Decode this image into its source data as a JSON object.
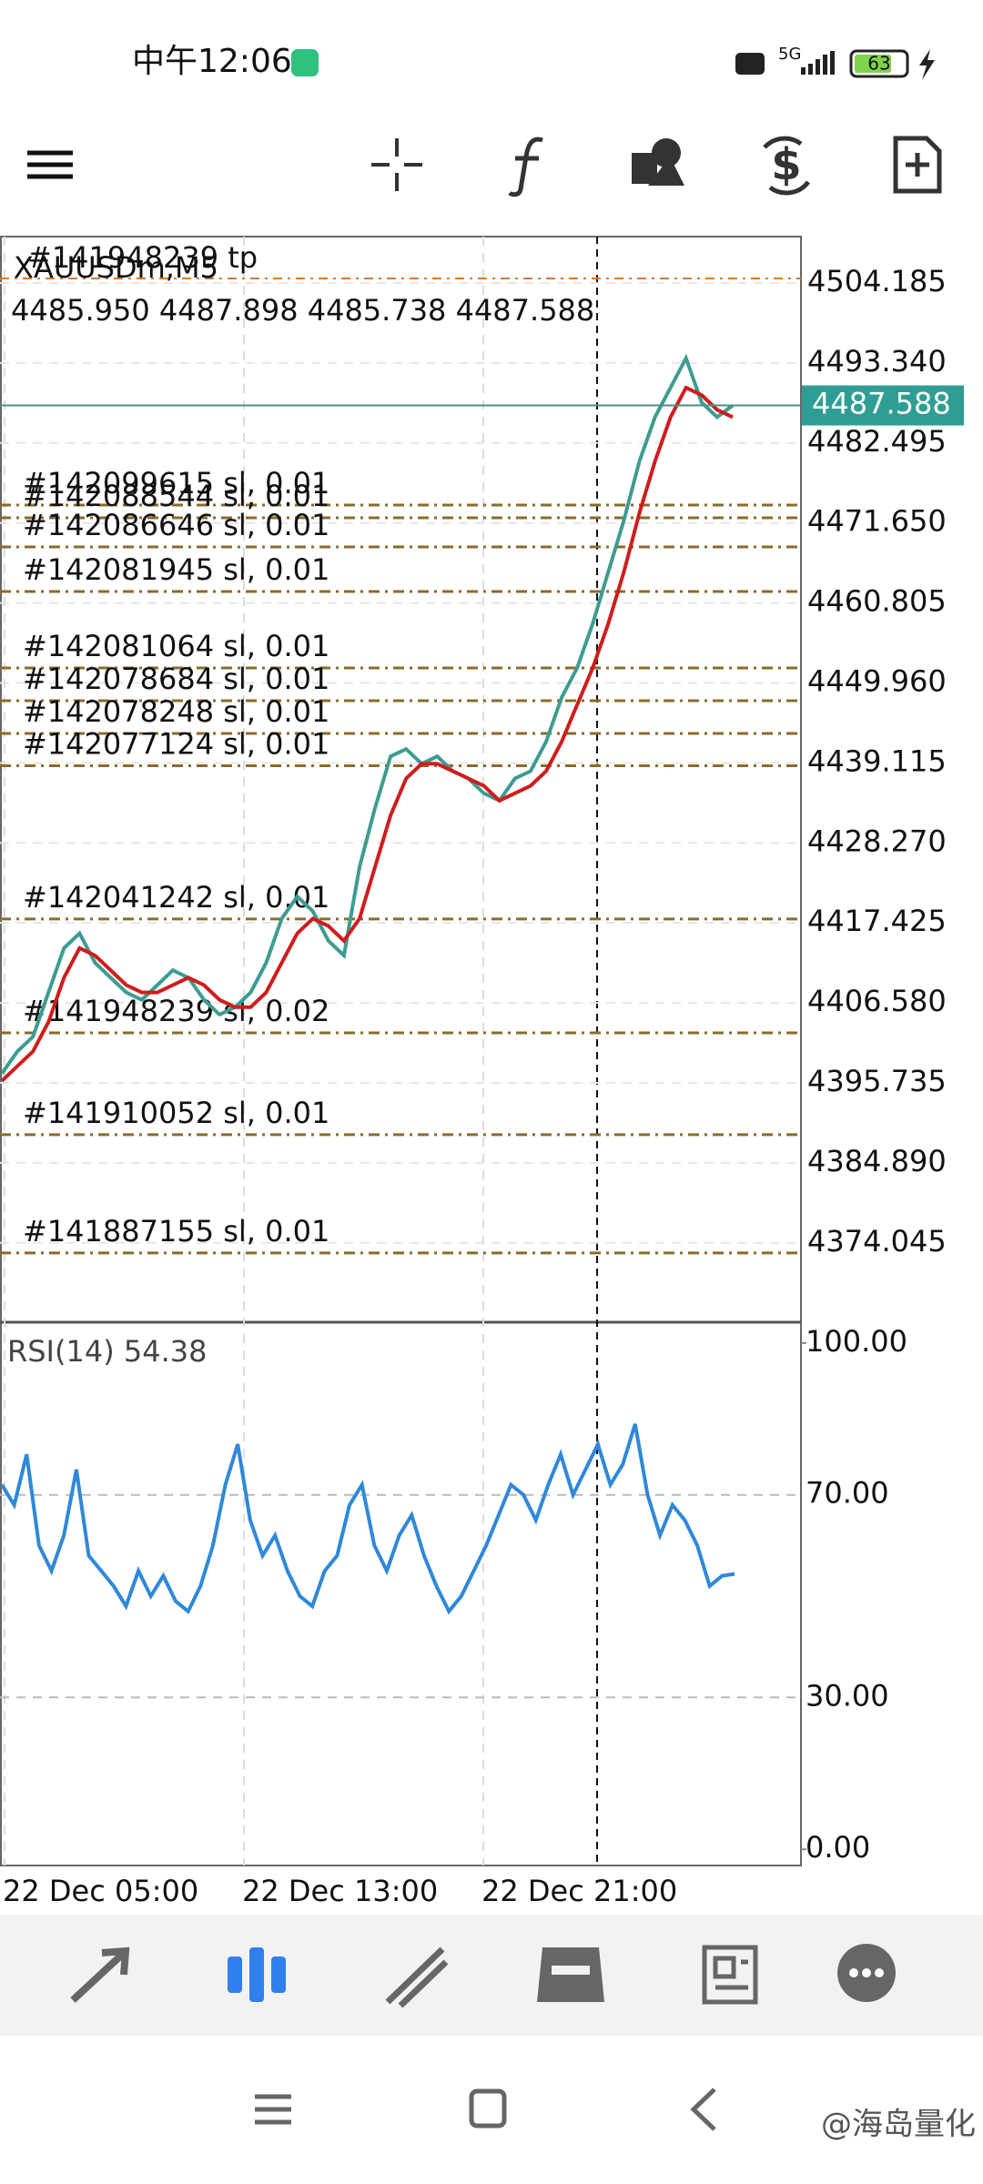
{
  "status_bar": {
    "time": "中午12:06",
    "network": "5G",
    "battery": "63"
  },
  "chart_data": {
    "type": "line",
    "symbol": "XAUUSDm,M5",
    "ohlc": "4485.950 4487.898 4485.738 4487.588",
    "tp_order": {
      "label": "#141948239 tp",
      "price": 4504.8
    },
    "current_price": 4487.588,
    "ylim": [
      4363.65,
      4510.48
    ],
    "yticks": [
      {
        "value": 4504.185,
        "label": "4504.185"
      },
      {
        "value": 4493.34,
        "label": "4493.340"
      },
      {
        "value": 4482.495,
        "label": "4482.495"
      },
      {
        "value": 4471.65,
        "label": "4471.650"
      },
      {
        "value": 4460.805,
        "label": "4460.805"
      },
      {
        "value": 4449.96,
        "label": "4449.960"
      },
      {
        "value": 4439.115,
        "label": "4439.115"
      },
      {
        "value": 4428.27,
        "label": "4428.270"
      },
      {
        "value": 4417.425,
        "label": "4417.425"
      },
      {
        "value": 4406.58,
        "label": "4406.580"
      },
      {
        "value": 4395.735,
        "label": "4395.735"
      },
      {
        "value": 4384.89,
        "label": "4384.890"
      },
      {
        "value": 4374.045,
        "label": "4374.045"
      }
    ],
    "x_labels": [
      "22 Dec 05:00",
      "22 Dec 13:00",
      "22 Dec 21:00"
    ],
    "series": [
      {
        "color": "#3d9c90",
        "values": [
          4397,
          4400,
          4402,
          4408,
          4414,
          4416,
          4412,
          4410,
          4408,
          4407,
          4409,
          4411,
          4410,
          4407,
          4405,
          4406,
          4408,
          4412,
          4418,
          4421,
          4419,
          4415,
          4413,
          4425,
          4433,
          4440,
          4441,
          4439,
          4440,
          4438,
          4437,
          4435,
          4434,
          4437,
          4438,
          4442,
          4448,
          4452,
          4458,
          4465,
          4472,
          4480,
          4486,
          4490,
          4494,
          4488,
          4486,
          4487.588
        ]
      },
      {
        "color": "#d01c1c",
        "values": [
          4396,
          4398,
          4400,
          4404,
          4410,
          4414,
          4413,
          4411,
          4409,
          4408,
          4408,
          4409,
          4410,
          4409,
          4407,
          4406,
          4406,
          4408,
          4412,
          4416,
          4418,
          4417,
          4415,
          4418,
          4425,
          4432,
          4437,
          4439,
          4439,
          4438,
          4437,
          4436,
          4434,
          4435,
          4436,
          4438,
          4442,
          4447,
          4452,
          4458,
          4465,
          4473,
          4480,
          4486,
          4490,
          4489,
          4487,
          4486
        ]
      }
    ],
    "orders": [
      {
        "label": "#142099615 sl, 0.01",
        "price": 4474.08
      },
      {
        "label": "#142088544 sl, 0.01",
        "price": 4472.35
      },
      {
        "label": "#142086646 sl, 0.01",
        "price": 4468.4
      },
      {
        "label": "#142081945 sl, 0.01",
        "price": 4462.36
      },
      {
        "label": "#142081064 sl, 0.01",
        "price": 4451.99
      },
      {
        "label": "#142078684 sl, 0.01",
        "price": 4447.55
      },
      {
        "label": "#142078248 sl, 0.01",
        "price": 4443.11
      },
      {
        "label": "#142077124 sl, 0.01",
        "price": 4438.73
      },
      {
        "label": "#142041242 sl, 0.01",
        "price": 4417.95
      },
      {
        "label": "#141948239 sl, 0.02",
        "price": 4402.52
      },
      {
        "label": "#141910052 sl, 0.01",
        "price": 4388.71
      },
      {
        "label": "#141887155 sl, 0.01",
        "price": 4372.67
      }
    ],
    "rsi": {
      "label": "RSI(14) 54.38",
      "color": "#2f88d8",
      "ylim": [
        -3.2,
        104.1
      ],
      "yticks": [
        {
          "value": 100,
          "label": "100.00"
        },
        {
          "value": 70,
          "label": "70.00"
        },
        {
          "value": 30,
          "label": "30.00"
        },
        {
          "value": 0,
          "label": "0.00"
        }
      ],
      "values": [
        72,
        68,
        78,
        60,
        55,
        62,
        75,
        58,
        55,
        52,
        48,
        55,
        50,
        54,
        49,
        47,
        52,
        60,
        72,
        80,
        65,
        58,
        62,
        55,
        50,
        48,
        55,
        58,
        68,
        72,
        60,
        55,
        62,
        66,
        58,
        52,
        47,
        50,
        55,
        60,
        66,
        72,
        70,
        65,
        72,
        78,
        70,
        75,
        80,
        72,
        76,
        84,
        70,
        62,
        68,
        65,
        60,
        52,
        54,
        54.38
      ]
    }
  },
  "watermark": "@海岛量化"
}
